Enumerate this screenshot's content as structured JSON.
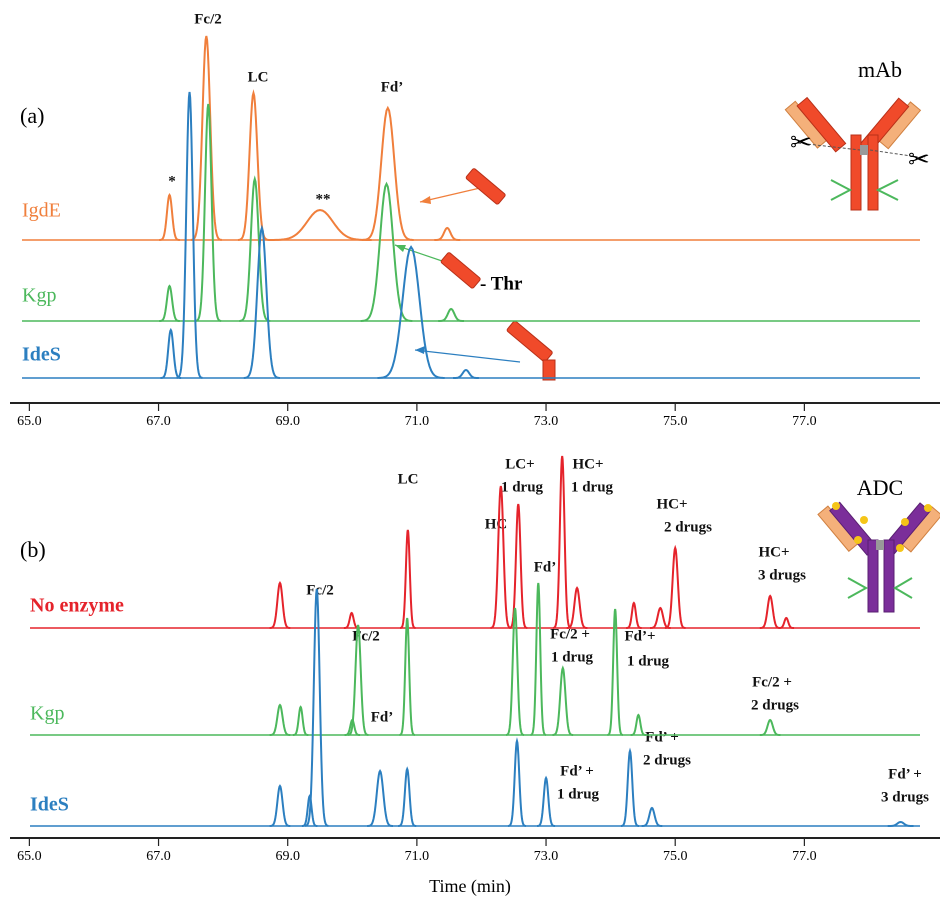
{
  "chart_data": [
    {
      "type": "line",
      "panel_label": "(a)",
      "icon_label": "mAb",
      "annotations": [
        "*",
        "Fc/2",
        "LC",
        "**",
        "Fd’",
        "- Thr"
      ],
      "xlim": [
        64.7,
        79.1
      ],
      "xticks": [
        {
          "value": 65,
          "label": "65.0"
        },
        {
          "value": 67,
          "label": "67.0"
        },
        {
          "value": 69,
          "label": "69.0"
        },
        {
          "value": 71,
          "label": "71.0"
        },
        {
          "value": 73,
          "label": "73.0"
        },
        {
          "value": 75,
          "label": "75.0"
        },
        {
          "value": 77,
          "label": "77.0"
        }
      ],
      "series": [
        {
          "name": "IgdE",
          "color": "#f07f3c",
          "x": [
            67.17,
            67.74,
            68.47,
            69.5,
            70.55,
            71.47
          ],
          "values": [
            45,
            204,
            147,
            30,
            132,
            12
          ],
          "widths": [
            0.04,
            0.06,
            0.06,
            0.2,
            0.1,
            0.05
          ]
        },
        {
          "name": "Kgp",
          "color": "#4cb85c",
          "x": [
            67.17,
            67.77,
            68.49,
            70.53,
            71.53
          ],
          "values": [
            35,
            217,
            142,
            137,
            12
          ],
          "widths": [
            0.04,
            0.05,
            0.06,
            0.1,
            0.05
          ]
        },
        {
          "name": "IdeS",
          "color": "#2c7fc0",
          "x": [
            67.19,
            67.48,
            68.6,
            70.91,
            71.76
          ],
          "values": [
            48,
            286,
            150,
            131,
            8
          ],
          "widths": [
            0.04,
            0.05,
            0.07,
            0.13,
            0.05
          ]
        }
      ]
    },
    {
      "type": "line",
      "panel_label": "(b)",
      "icon_label": "ADC",
      "xlabel": "Time (min)",
      "annotations": [
        "LC",
        "HC",
        [
          "LC+",
          "1 drug"
        ],
        [
          "HC+",
          "1 drug"
        ],
        "Fd’",
        [
          "HC+",
          "2 drugs"
        ],
        [
          "HC+",
          "3 drugs"
        ],
        "Fc/2",
        "Fc/2",
        [
          "Fc/2 +",
          "1 drug"
        ],
        [
          "Fd’+",
          "1 drug"
        ],
        [
          "Fc/2 +",
          "2 drugs"
        ],
        "Fd’",
        [
          "Fd’ +",
          "1 drug"
        ],
        [
          "Fd’ +",
          "2 drugs"
        ],
        [
          "Fd’ +",
          "3 drugs"
        ]
      ],
      "xlim": [
        64.7,
        79.1
      ],
      "xticks": [
        {
          "value": 65,
          "label": "65.0"
        },
        {
          "value": 67,
          "label": "67.0"
        },
        {
          "value": 69,
          "label": "69.0"
        },
        {
          "value": 71,
          "label": "71.0"
        },
        {
          "value": 73,
          "label": "73.0"
        },
        {
          "value": 75,
          "label": "75.0"
        },
        {
          "value": 77,
          "label": "77.0"
        }
      ],
      "series": [
        {
          "name": "No enzyme",
          "color": "#e5232b",
          "x": [
            68.88,
            69.99,
            70.86,
            72.3,
            72.57,
            73.25,
            73.48,
            74.36,
            74.77,
            75.0,
            76.47,
            76.72
          ],
          "values": [
            45,
            15,
            98,
            142,
            124,
            172,
            40,
            25,
            20,
            80,
            32,
            10
          ],
          "widths": [
            0.04,
            0.03,
            0.03,
            0.04,
            0.035,
            0.035,
            0.04,
            0.03,
            0.04,
            0.04,
            0.04,
            0.03
          ]
        },
        {
          "name": "Kgp",
          "color": "#4cb85c",
          "x": [
            68.88,
            69.2,
            70.0,
            70.09,
            70.85,
            72.52,
            72.88,
            73.26,
            74.07,
            74.43,
            76.47
          ],
          "values": [
            30,
            28,
            15,
            110,
            117,
            127,
            152,
            67,
            126,
            20,
            15
          ],
          "widths": [
            0.04,
            0.03,
            0.03,
            0.04,
            0.03,
            0.035,
            0.03,
            0.04,
            0.03,
            0.03,
            0.04
          ]
        },
        {
          "name": "IdeS",
          "color": "#2c7fc0",
          "x": [
            68.88,
            69.34,
            69.45,
            70.43,
            70.85,
            72.55,
            73.0,
            74.3,
            74.64,
            78.49
          ],
          "values": [
            40,
            30,
            237,
            55,
            57,
            85,
            48,
            75,
            18,
            4
          ],
          "widths": [
            0.04,
            0.03,
            0.045,
            0.05,
            0.035,
            0.035,
            0.035,
            0.035,
            0.04,
            0.05
          ]
        }
      ]
    }
  ]
}
